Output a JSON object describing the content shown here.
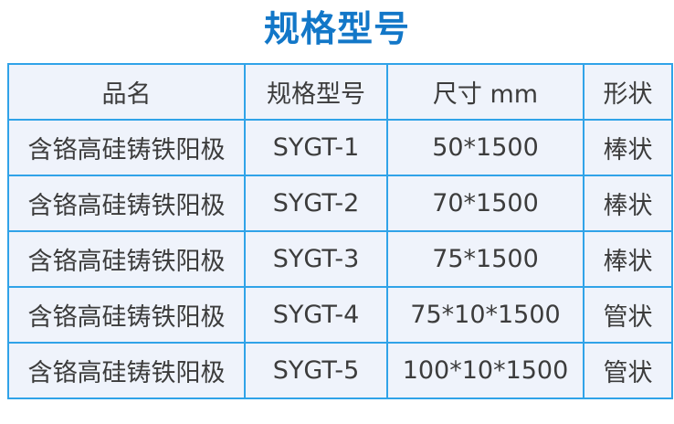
{
  "page": {
    "title": "规格型号"
  },
  "colors": {
    "title_color": "#1277c8",
    "border_color": "#30a3e8",
    "cell_bg": "#eff3fb",
    "text_color": "#3c3c3c"
  },
  "table": {
    "columns": [
      "品名",
      "规格型号",
      "尺寸  mm",
      "形状"
    ],
    "rows": [
      [
        "含铬高硅铸铁阳极",
        "SYGT-1",
        "50*1500",
        "棒状"
      ],
      [
        "含铬高硅铸铁阳极",
        "SYGT-2",
        "70*1500",
        "棒状"
      ],
      [
        "含铬高硅铸铁阳极",
        "SYGT-3",
        "75*1500",
        "棒状"
      ],
      [
        "含铬高硅铸铁阳极",
        "SYGT-4",
        "75*10*1500",
        "管状"
      ],
      [
        "含铬高硅铸铁阳极",
        "SYGT-5",
        "100*10*1500",
        "管状"
      ]
    ]
  }
}
